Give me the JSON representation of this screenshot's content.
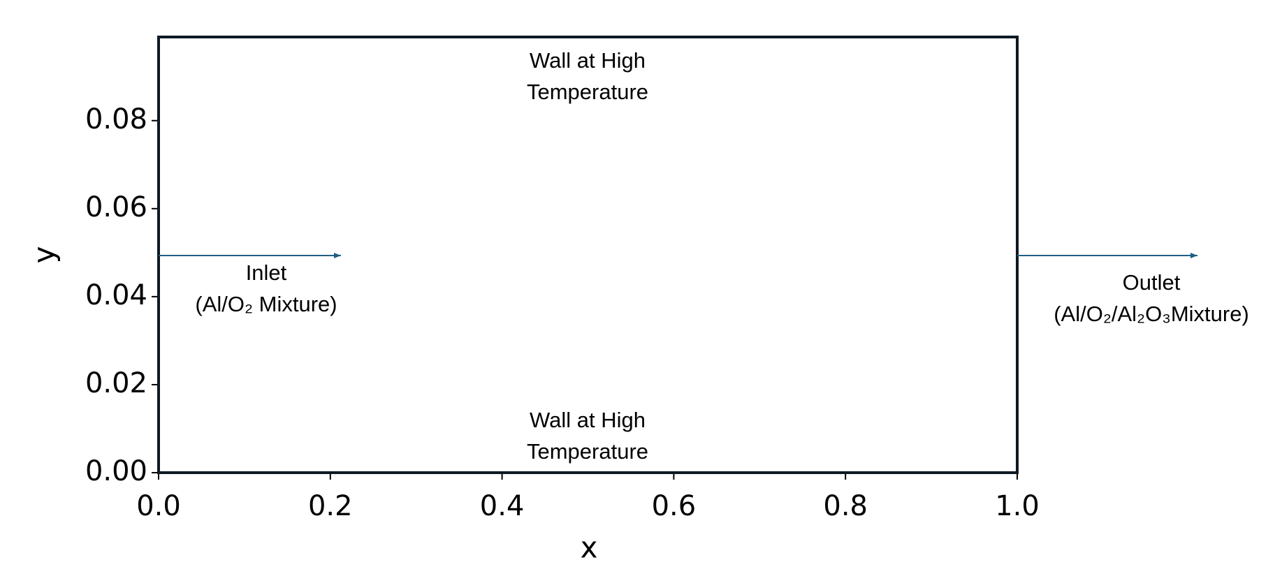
{
  "chart_data": {
    "type": "annotated",
    "xlabel": "x",
    "ylabel": "y",
    "xlim": [
      0,
      1
    ],
    "ylim": [
      0,
      0.099
    ],
    "xticks": [
      {
        "value": 0,
        "label": "0.0"
      },
      0.2,
      0.4,
      0.6,
      0.8,
      {
        "value": 1,
        "label": "1.0"
      }
    ],
    "yticks": [
      {
        "value": 0,
        "label": "0.00"
      },
      {
        "value": 0.02,
        "label": "0.02"
      },
      {
        "value": 0.04,
        "label": "0.04"
      },
      {
        "value": 0.06,
        "label": "0.06"
      },
      {
        "value": 0.08,
        "label": "0.08"
      }
    ],
    "annotations": [
      {
        "lines": [
          "Wall at High",
          "Temperature"
        ]
      },
      {
        "lines": [
          "Inlet",
          "(Al/O₂ Mixture)"
        ]
      },
      {
        "lines": [
          "Outlet",
          "(Al/O₂/Al₂O₃Mixture)"
        ]
      },
      {
        "lines": [
          "Wall at High",
          "Temperature"
        ]
      }
    ],
    "arrow_color": "#1f5f85"
  }
}
